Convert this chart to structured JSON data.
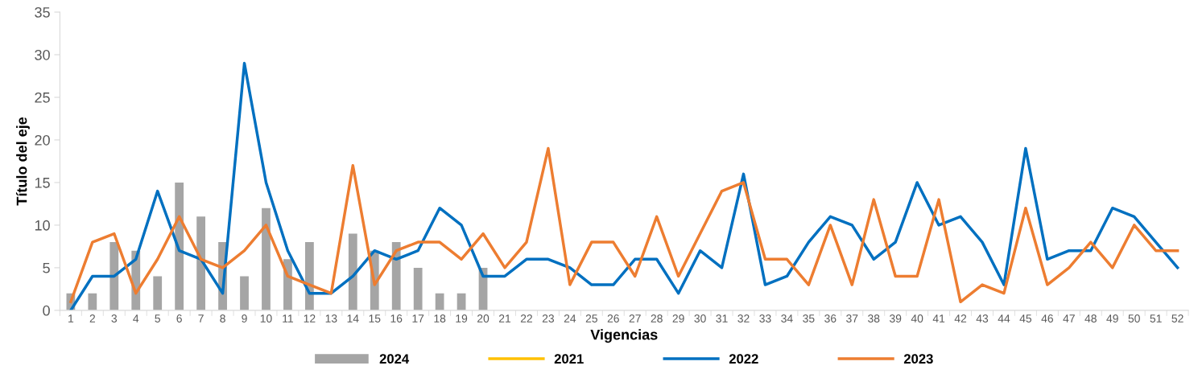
{
  "chart_data": {
    "type": "line",
    "xlabel": "Vigencias",
    "ylabel": "Título del eje",
    "categories": [
      "1",
      "2",
      "3",
      "4",
      "5",
      "6",
      "7",
      "8",
      "9",
      "10",
      "11",
      "12",
      "13",
      "14",
      "15",
      "16",
      "17",
      "18",
      "19",
      "20",
      "21",
      "22",
      "23",
      "24",
      "25",
      "26",
      "27",
      "28",
      "29",
      "30",
      "31",
      "32",
      "33",
      "34",
      "35",
      "36",
      "37",
      "38",
      "39",
      "40",
      "41",
      "42",
      "43",
      "44",
      "45",
      "46",
      "47",
      "48",
      "49",
      "50",
      "51",
      "52"
    ],
    "series": [
      {
        "name": "2024",
        "type": "bar",
        "color": "#a5a5a5",
        "values": [
          2,
          2,
          8,
          7,
          4,
          15,
          11,
          8,
          4,
          12,
          6,
          8,
          null,
          9,
          7,
          8,
          5,
          2,
          2,
          5,
          null,
          null,
          null,
          null,
          null,
          null,
          null,
          null,
          null,
          null,
          null,
          null,
          null,
          null,
          null,
          null,
          null,
          null,
          null,
          null,
          null,
          null,
          null,
          null,
          null,
          null,
          null,
          null,
          null,
          null,
          null,
          null
        ]
      },
      {
        "name": "2021",
        "color": "#ffc000",
        "values": [
          null,
          null,
          null,
          null,
          null,
          null,
          null,
          null,
          null,
          null,
          null,
          null,
          null,
          null,
          null,
          null,
          null,
          null,
          null,
          null,
          null,
          null,
          null,
          null,
          null,
          null,
          null,
          null,
          null,
          null,
          null,
          null,
          null,
          null,
          null,
          null,
          null,
          null,
          null,
          null,
          null,
          null,
          null,
          null,
          null,
          null,
          null,
          null,
          null,
          null,
          null,
          null
        ]
      },
      {
        "name": "2022",
        "color": "#0070c0",
        "values": [
          0,
          4,
          4,
          6,
          14,
          7,
          6,
          2,
          29,
          15,
          7,
          2,
          2,
          4,
          7,
          6,
          7,
          12,
          10,
          4,
          4,
          6,
          6,
          5,
          3,
          3,
          6,
          6,
          2,
          7,
          5,
          16,
          3,
          4,
          8,
          11,
          10,
          6,
          8,
          15,
          10,
          11,
          8,
          3,
          19,
          6,
          7,
          7,
          12,
          11,
          8,
          5
        ]
      },
      {
        "name": "2023",
        "color": "#ed7d31",
        "values": [
          1,
          8,
          9,
          2,
          6,
          11,
          6,
          5,
          7,
          10,
          4,
          3,
          2,
          17,
          3,
          7,
          8,
          8,
          6,
          9,
          5,
          8,
          19,
          3,
          8,
          8,
          4,
          11,
          4,
          9,
          14,
          15,
          6,
          6,
          3,
          10,
          3,
          13,
          4,
          4,
          13,
          1,
          3,
          2,
          12,
          3,
          5,
          8,
          5,
          10,
          7,
          7
        ]
      }
    ],
    "ylim": [
      0,
      35
    ],
    "yticks": [
      0,
      5,
      10,
      15,
      20,
      25,
      30,
      35
    ],
    "grid": false,
    "legend": "bottom",
    "marker": "none",
    "line_style": "solid"
  }
}
